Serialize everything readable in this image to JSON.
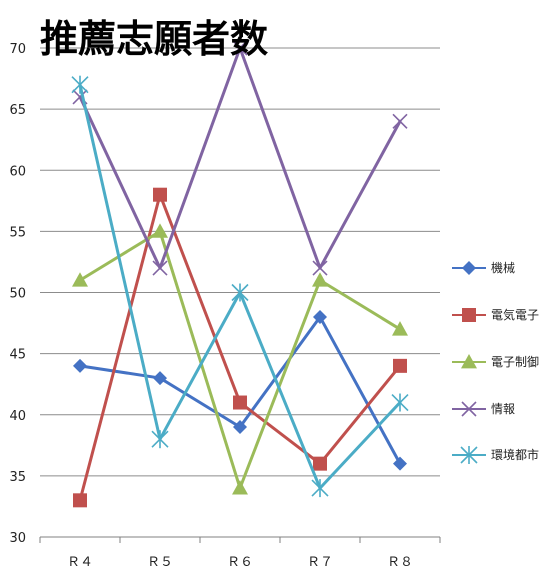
{
  "chart_data": {
    "type": "line",
    "title": "推薦志願者数",
    "categories": [
      "Ｒ４",
      "Ｒ５",
      "Ｒ６",
      "Ｒ７",
      "Ｒ８"
    ],
    "ylim": [
      30,
      70
    ],
    "yticks": [
      30,
      35,
      40,
      45,
      50,
      55,
      60,
      65,
      70
    ],
    "grid": true,
    "legend": "right",
    "series": [
      {
        "name": "機械",
        "values": [
          44,
          43,
          39,
          48,
          36
        ],
        "color": "#4472C4",
        "marker": "diamond"
      },
      {
        "name": "電気電子",
        "values": [
          33,
          58,
          41,
          36,
          44
        ],
        "color": "#C0504D",
        "marker": "square"
      },
      {
        "name": "電子制御",
        "values": [
          51,
          55,
          34,
          51,
          47
        ],
        "color": "#9BBB59",
        "marker": "triangle"
      },
      {
        "name": "情報",
        "values": [
          66,
          52,
          70,
          52,
          64
        ],
        "color": "#8064A2",
        "marker": "x"
      },
      {
        "name": "環境都市",
        "values": [
          67,
          38,
          50,
          34,
          41
        ],
        "color": "#4BACC6",
        "marker": "star"
      }
    ]
  }
}
